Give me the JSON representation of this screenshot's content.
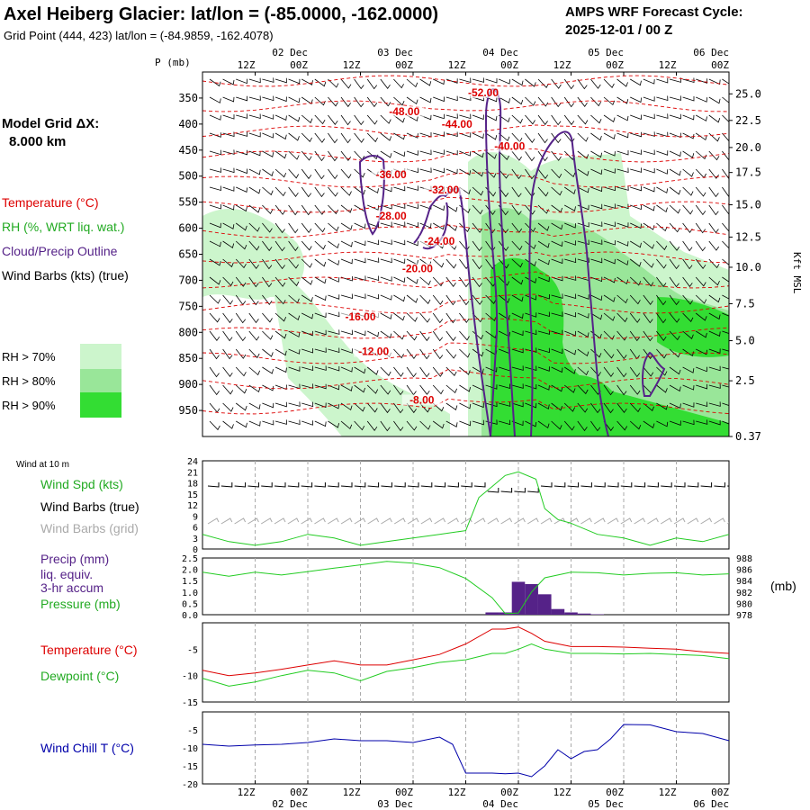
{
  "header": {
    "title": "Axel Heiberg Glacier:  lat/lon = (-85.0000, -162.0000)",
    "subtitle": "Grid Point (444, 423) lat/lon = (-84.9859, -162.4078)",
    "cycle_label": "AMPS WRF Forecast Cycle:",
    "cycle_value": "2025-12-01 / 00  Z"
  },
  "legend": {
    "model_grid_line1": "Model Grid ΔX:",
    "model_grid_line2": "8.000 km",
    "temperature": "Temperature (°C)",
    "rh": "RH (%, WRT liq. wat.)",
    "cloud": "Cloud/Precip Outline",
    "wind_barbs": "Wind Barbs (kts) (true)",
    "rh70": "RH > 70%",
    "rh80": "RH > 80%",
    "rh90": "RH > 90%",
    "p_axis_label": "P (mb)",
    "kft_axis_label": "Kft MSL",
    "wind_at_10m": "Wind at 10 m",
    "wind_spd": "Wind Spd (kts)",
    "wind_barbs_true": "Wind Barbs (true)",
    "wind_barbs_grid": "Wind Barbs (grid)",
    "precip_line1": "Precip (mm)",
    "precip_line2": "liq. equiv.",
    "precip_line3": "3-hr accum",
    "pressure": "Pressure (mb)",
    "mb_unit": "(mb)",
    "temp_panel": "Temperature (°C)",
    "dewpoint_panel": "Dewpoint (°C)",
    "windchill_panel": "Wind Chill T (°C)"
  },
  "colors": {
    "red": "#dd0000",
    "green": "#22cc22",
    "purple": "#552288",
    "blue": "#0000aa",
    "grid_grey": "#aaaaaa",
    "rh70": "#ccf5cc",
    "rh80": "#99e699",
    "rh90": "#33dd33"
  },
  "chart_data": [
    {
      "type": "heatmap",
      "name": "cross-section",
      "time_axis": {
        "hours": [
          12,
          24,
          36,
          48,
          60,
          72,
          84,
          96,
          108,
          120
        ],
        "hour_labels": [
          "12Z",
          "00Z",
          "12Z",
          "00Z",
          "12Z",
          "00Z",
          "12Z",
          "00Z",
          "12Z",
          "00Z"
        ],
        "day_labels": [
          {
            "hour": 24,
            "label": "02 Dec"
          },
          {
            "hour": 48,
            "label": "03 Dec"
          },
          {
            "hour": 72,
            "label": "04 Dec"
          },
          {
            "hour": 96,
            "label": "05 Dec"
          },
          {
            "hour": 120,
            "label": "06 Dec"
          }
        ],
        "xlim": [
          0,
          120
        ]
      },
      "pressure_ticks": [
        350,
        400,
        450,
        500,
        550,
        600,
        650,
        700,
        750,
        800,
        850,
        900,
        950
      ],
      "ylim_mb": [
        1000,
        300
      ],
      "kft_labels": [
        {
          "p": 342,
          "label": "25.0"
        },
        {
          "p": 393,
          "label": "22.5"
        },
        {
          "p": 445,
          "label": "20.0"
        },
        {
          "p": 493,
          "label": "17.5"
        },
        {
          "p": 555,
          "label": "15.0"
        },
        {
          "p": 617,
          "label": "12.5"
        },
        {
          "p": 675,
          "label": "10.0"
        },
        {
          "p": 745,
          "label": "7.5"
        },
        {
          "p": 816,
          "label": "5.0"
        },
        {
          "p": 893,
          "label": "2.5"
        },
        {
          "p": 1000,
          "label": "0.37"
        }
      ],
      "isotherm_labels": [
        {
          "label": "-52.00",
          "hour": 64,
          "p": 345
        },
        {
          "label": "-48.00",
          "hour": 46,
          "p": 381
        },
        {
          "label": "-44.00",
          "hour": 58,
          "p": 405
        },
        {
          "label": "-40.00",
          "hour": 70,
          "p": 448
        },
        {
          "label": "-36.00",
          "hour": 43,
          "p": 502
        },
        {
          "label": "-32.00",
          "hour": 55,
          "p": 532
        },
        {
          "label": "-28.00",
          "hour": 43,
          "p": 582
        },
        {
          "label": "-24.00",
          "hour": 54,
          "p": 630
        },
        {
          "label": "-20.00",
          "hour": 49,
          "p": 683
        },
        {
          "label": "-16.00",
          "hour": 36,
          "p": 775
        },
        {
          "label": "-12.00",
          "hour": 39,
          "p": 842
        },
        {
          "label": "-8.00",
          "hour": 50,
          "p": 935
        }
      ]
    },
    {
      "type": "line",
      "name": "wind10m",
      "ylim": [
        0,
        24
      ],
      "yticks": [
        0,
        3,
        6,
        9,
        12,
        15,
        18,
        21,
        24
      ],
      "series": [
        {
          "name": "Wind Spd (kts)",
          "x": [
            0,
            6,
            12,
            18,
            24,
            30,
            36,
            42,
            48,
            54,
            60,
            63,
            66,
            69,
            72,
            76,
            78,
            81,
            84,
            90,
            96,
            102,
            108,
            114,
            120
          ],
          "values": [
            4,
            2,
            1,
            2,
            4,
            3,
            1,
            2,
            3,
            4,
            5,
            14,
            17,
            20,
            21,
            19,
            11,
            8,
            7,
            4,
            3,
            1,
            3,
            2,
            4
          ]
        }
      ]
    },
    {
      "type": "bar",
      "name": "precip-pressure",
      "ylim_precip_mm": [
        0,
        2.5
      ],
      "precip_ticks": [
        0.0,
        0.5,
        1.0,
        1.5,
        2.0,
        2.5
      ],
      "ylim_pressure_mb": [
        978,
        988
      ],
      "pressure_ticks": [
        978,
        980,
        982,
        984,
        986,
        988
      ],
      "precip_series": {
        "name": "Precip (mm)",
        "x": [
          66,
          69,
          72,
          75,
          78,
          81,
          84,
          87,
          90
        ],
        "values": [
          0.1,
          0.1,
          1.45,
          1.35,
          0.9,
          0.25,
          0.1,
          0.05,
          0.02
        ]
      },
      "pressure_series": {
        "name": "Pressure (mb)",
        "x": [
          0,
          6,
          12,
          18,
          24,
          30,
          36,
          42,
          48,
          54,
          60,
          66,
          69,
          72,
          75,
          78,
          84,
          90,
          96,
          102,
          108,
          114,
          120
        ],
        "values": [
          985.5,
          984.8,
          985.5,
          985.0,
          985.6,
          986.2,
          986.8,
          987.4,
          987.1,
          986.3,
          984.4,
          981.0,
          978.2,
          978.3,
          982.0,
          984.5,
          985.5,
          985.4,
          985.0,
          985.3,
          985.4,
          985.0,
          985.2
        ]
      }
    },
    {
      "type": "line",
      "name": "temp-dewpoint",
      "ylim": [
        -15,
        0
      ],
      "yticks": [
        -15,
        -10,
        -5
      ],
      "series": [
        {
          "name": "Temperature (°C)",
          "x": [
            0,
            6,
            12,
            18,
            24,
            30,
            36,
            42,
            48,
            54,
            60,
            66,
            69,
            72,
            75,
            78,
            84,
            90,
            96,
            102,
            108,
            114,
            120
          ],
          "values": [
            -9.0,
            -10.0,
            -9.5,
            -8.8,
            -8.0,
            -7.2,
            -8.0,
            -8.0,
            -7.0,
            -6.0,
            -4.0,
            -1.2,
            -1.2,
            -0.8,
            -2.0,
            -3.5,
            -4.5,
            -4.5,
            -4.6,
            -4.8,
            -5.0,
            -5.5,
            -5.8
          ]
        },
        {
          "name": "Dewpoint (°C)",
          "x": [
            0,
            6,
            12,
            18,
            24,
            30,
            36,
            42,
            48,
            54,
            60,
            66,
            69,
            72,
            75,
            78,
            84,
            90,
            96,
            102,
            108,
            114,
            120
          ],
          "values": [
            -10.5,
            -12.0,
            -11.2,
            -10.0,
            -9.0,
            -9.5,
            -11.0,
            -9.2,
            -8.5,
            -7.5,
            -7.0,
            -5.8,
            -5.8,
            -5.0,
            -4.0,
            -5.0,
            -5.8,
            -5.8,
            -5.9,
            -5.8,
            -6.0,
            -6.2,
            -6.8
          ]
        }
      ]
    },
    {
      "type": "line",
      "name": "windchill",
      "ylim": [
        -20,
        0
      ],
      "yticks": [
        -20,
        -15,
        -10,
        -5
      ],
      "series": [
        {
          "name": "Wind Chill T (°C)",
          "x": [
            0,
            6,
            12,
            18,
            24,
            30,
            36,
            42,
            48,
            54,
            57,
            60,
            66,
            69,
            72,
            75,
            78,
            81,
            84,
            87,
            90,
            93,
            96,
            102,
            108,
            114,
            120
          ],
          "values": [
            -9.0,
            -9.5,
            -9.2,
            -9.0,
            -8.5,
            -7.5,
            -8.0,
            -8.0,
            -8.5,
            -7.0,
            -9.0,
            -17.0,
            -17.0,
            -17.2,
            -17.0,
            -18.0,
            -15.0,
            -10.5,
            -13.0,
            -11.0,
            -10.5,
            -7.5,
            -3.5,
            -3.6,
            -5.5,
            -6.0,
            -8.0
          ]
        }
      ]
    }
  ]
}
